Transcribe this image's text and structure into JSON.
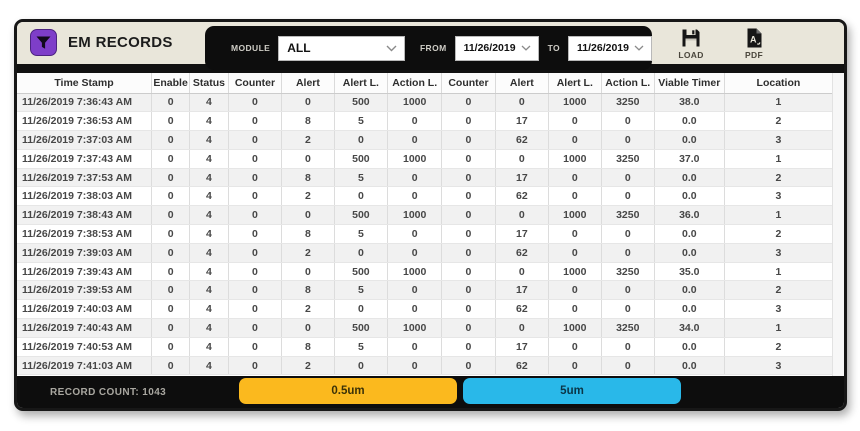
{
  "app": {
    "title": "EM RECORDS",
    "module_label": "MODULE",
    "module_value": "ALL",
    "from_label": "FROM",
    "from_value": "11/26/2019",
    "to_label": "TO",
    "to_value": "11/26/2019",
    "load_label": "LOAD",
    "pdf_label": "PDF"
  },
  "table": {
    "columns": [
      "Time Stamp",
      "Enable",
      "Status",
      "Counter",
      "Alert",
      "Alert L.",
      "Action L.",
      "Counter",
      "Alert",
      "Alert L.",
      "Action L.",
      "Viable Timer",
      "Location"
    ],
    "rows": [
      [
        "11/26/2019 7:36:43 AM",
        "0",
        "4",
        "0",
        "0",
        "500",
        "1000",
        "0",
        "0",
        "1000",
        "3250",
        "38.0",
        "1"
      ],
      [
        "11/26/2019 7:36:53 AM",
        "0",
        "4",
        "0",
        "8",
        "5",
        "0",
        "0",
        "17",
        "0",
        "0",
        "0.0",
        "2"
      ],
      [
        "11/26/2019 7:37:03 AM",
        "0",
        "4",
        "0",
        "2",
        "0",
        "0",
        "0",
        "62",
        "0",
        "0",
        "0.0",
        "3"
      ],
      [
        "11/26/2019 7:37:43 AM",
        "0",
        "4",
        "0",
        "0",
        "500",
        "1000",
        "0",
        "0",
        "1000",
        "3250",
        "37.0",
        "1"
      ],
      [
        "11/26/2019 7:37:53 AM",
        "0",
        "4",
        "0",
        "8",
        "5",
        "0",
        "0",
        "17",
        "0",
        "0",
        "0.0",
        "2"
      ],
      [
        "11/26/2019 7:38:03 AM",
        "0",
        "4",
        "0",
        "2",
        "0",
        "0",
        "0",
        "62",
        "0",
        "0",
        "0.0",
        "3"
      ],
      [
        "11/26/2019 7:38:43 AM",
        "0",
        "4",
        "0",
        "0",
        "500",
        "1000",
        "0",
        "0",
        "1000",
        "3250",
        "36.0",
        "1"
      ],
      [
        "11/26/2019 7:38:53 AM",
        "0",
        "4",
        "0",
        "8",
        "5",
        "0",
        "0",
        "17",
        "0",
        "0",
        "0.0",
        "2"
      ],
      [
        "11/26/2019 7:39:03 AM",
        "0",
        "4",
        "0",
        "2",
        "0",
        "0",
        "0",
        "62",
        "0",
        "0",
        "0.0",
        "3"
      ],
      [
        "11/26/2019 7:39:43 AM",
        "0",
        "4",
        "0",
        "0",
        "500",
        "1000",
        "0",
        "0",
        "1000",
        "3250",
        "35.0",
        "1"
      ],
      [
        "11/26/2019 7:39:53 AM",
        "0",
        "4",
        "0",
        "8",
        "5",
        "0",
        "0",
        "17",
        "0",
        "0",
        "0.0",
        "2"
      ],
      [
        "11/26/2019 7:40:03 AM",
        "0",
        "4",
        "0",
        "2",
        "0",
        "0",
        "0",
        "62",
        "0",
        "0",
        "0.0",
        "3"
      ],
      [
        "11/26/2019 7:40:43 AM",
        "0",
        "4",
        "0",
        "0",
        "500",
        "1000",
        "0",
        "0",
        "1000",
        "3250",
        "34.0",
        "1"
      ],
      [
        "11/26/2019 7:40:53 AM",
        "0",
        "4",
        "0",
        "8",
        "5",
        "0",
        "0",
        "17",
        "0",
        "0",
        "0.0",
        "2"
      ],
      [
        "11/26/2019 7:41:03 AM",
        "0",
        "4",
        "0",
        "2",
        "0",
        "0",
        "0",
        "62",
        "0",
        "0",
        "0.0",
        "3"
      ]
    ]
  },
  "footer": {
    "record_count": "RECORD COUNT: 1043",
    "tabs": [
      {
        "label": "0.5um",
        "color": "#fbb91e",
        "text_color": "#3b3208"
      },
      {
        "label": "5um",
        "color": "#29b8e9",
        "text_color": "#0b3648"
      }
    ]
  },
  "colors": {
    "accent_purple": "#7e3ec9",
    "header_cream": "#e9e6da",
    "panel_black": "#0d0d0d"
  }
}
